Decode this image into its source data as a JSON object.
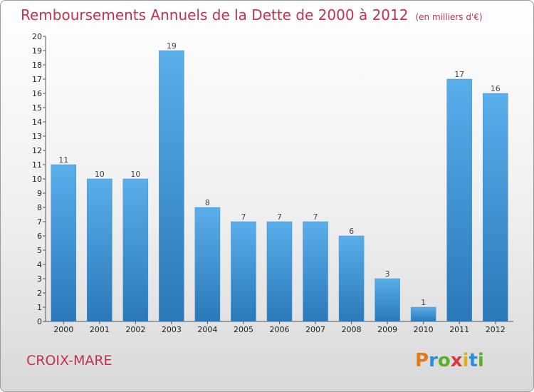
{
  "header": {
    "title": "Remboursements Annuels de la Dette de 2000 à 2012",
    "unit": "(en milliers d'€)"
  },
  "footer": {
    "place": "CROIX-MARE",
    "logo": [
      "P",
      "r",
      "o",
      "x",
      "i",
      "t",
      "i"
    ]
  },
  "colors": {
    "title": "#c0324e",
    "bar_top": "#5aaeea",
    "bar_bottom": "#2a78b8"
  },
  "chart_data": {
    "type": "bar",
    "title": "Remboursements Annuels de la Dette de 2000 à 2012",
    "subtitle": "(en milliers d'€)",
    "categories": [
      "2000",
      "2001",
      "2002",
      "2003",
      "2004",
      "2005",
      "2006",
      "2007",
      "2008",
      "2009",
      "2010",
      "2011",
      "2012"
    ],
    "values": [
      11,
      10,
      10,
      19,
      8,
      7,
      7,
      7,
      6,
      3,
      1,
      17,
      16
    ],
    "ylim": [
      0,
      20
    ],
    "yticks": [
      0,
      1,
      2,
      3,
      4,
      5,
      6,
      7,
      8,
      9,
      10,
      11,
      12,
      13,
      14,
      15,
      16,
      17,
      18,
      19,
      20
    ],
    "grid": false,
    "data_labels": true
  }
}
